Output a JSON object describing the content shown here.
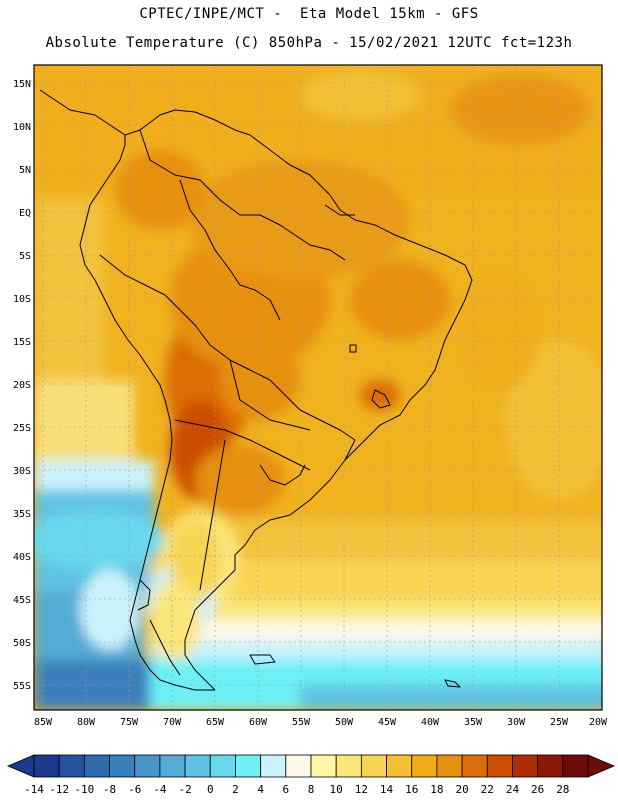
{
  "header": {
    "line1": "CPTEC/INPE/MCT -  Eta Model 15km - GFS",
    "line2": "Absolute Temperature (C) 850hPa - 15/02/2021 12UTC fct=123h"
  },
  "map": {
    "lat_labels": [
      "15N",
      "10N",
      "5N",
      "EQ",
      "5S",
      "10S",
      "15S",
      "20S",
      "25S",
      "30S",
      "35S",
      "40S",
      "45S",
      "50S",
      "55S"
    ],
    "lon_labels": [
      "85W",
      "80W",
      "75W",
      "70W",
      "65W",
      "60W",
      "55W",
      "50W",
      "45W",
      "40W",
      "35W",
      "30W",
      "25W",
      "20W"
    ],
    "lat_range": [
      -58,
      16
    ],
    "lon_range": [
      -85.5,
      -20.5
    ],
    "grid": true
  },
  "colorbar": {
    "labels": [
      "-14",
      "-12",
      "-10",
      "-8",
      "-6",
      "-4",
      "-2",
      "0",
      "2",
      "4",
      "6",
      "8",
      "10",
      "12",
      "14",
      "16",
      "18",
      "20",
      "22",
      "24",
      "26",
      "28"
    ],
    "colors": [
      "#1b3a8c",
      "#23529e",
      "#2d6aae",
      "#3a80bc",
      "#4596c8",
      "#52acd6",
      "#5fc2e3",
      "#67d8ee",
      "#6cf0f6",
      "#cbf2fb",
      "#fff9e8",
      "#fff6a6",
      "#fbe67a",
      "#f8d452",
      "#f3c034",
      "#efac18",
      "#e7900d",
      "#dc6d06",
      "#cc4d04",
      "#ae2e02",
      "#8c1706",
      "#6e0a0a"
    ]
  }
}
